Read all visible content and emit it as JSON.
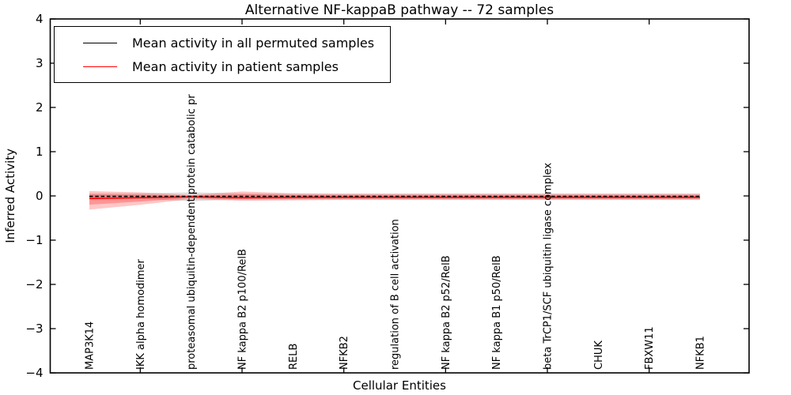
{
  "title": "Alternative NF-kappaB pathway -- 72 samples",
  "legend": {
    "items": [
      {
        "label": "Mean activity in all permuted samples",
        "color": "#000000"
      },
      {
        "label": "Mean activity in patient samples",
        "color": "#ff0000"
      }
    ],
    "position": "upper left"
  },
  "chart_data": {
    "type": "line",
    "title": "Alternative NF-kappaB pathway -- 72 samples",
    "xlabel": "Cellular Entities",
    "ylabel": "Inferred Activity",
    "ylim": [
      -4,
      4
    ],
    "yticks": [
      4,
      3,
      2,
      1,
      0,
      -1,
      -2,
      -3,
      -4
    ],
    "xtick_mark_indices": [
      1,
      3,
      5,
      7,
      9,
      11
    ],
    "grid": false,
    "legend_position": "upper left",
    "categories": [
      "MAP3K14",
      "IKK alpha homodimer",
      "proteasomal ubiquitin-dependent protein catabolic pr",
      "NF kappa B2 p100/RelB",
      "RELB",
      "NFKB2",
      "regulation of B cell activation",
      "NF kappa B2 p52/RelB",
      "NF kappa B1 p50/RelB",
      "beta TrCP1/SCF ubiquitin ligase complex",
      "CHUK",
      "FBXW11",
      "NFKB1"
    ],
    "series": [
      {
        "name": "Mean activity in all permuted samples",
        "color": "#000000",
        "line_style": "dashed",
        "band_color": "#000000",
        "band_alpha": 0.13,
        "values": [
          -0.01,
          -0.01,
          -0.01,
          -0.01,
          -0.01,
          -0.01,
          -0.01,
          -0.01,
          -0.01,
          -0.01,
          -0.01,
          -0.01,
          -0.01
        ],
        "band_hi": [
          0.06,
          0.06,
          0.08,
          0.06,
          0.05,
          0.05,
          0.05,
          0.05,
          0.05,
          0.05,
          0.05,
          0.05,
          0.05
        ],
        "band_lo": [
          -0.07,
          -0.07,
          -0.12,
          -0.08,
          -0.08,
          -0.08,
          -0.08,
          -0.08,
          -0.08,
          -0.08,
          -0.08,
          -0.08,
          -0.08
        ]
      },
      {
        "name": "Mean activity in patient samples",
        "color": "#ff0000",
        "line_style": "solid",
        "band_color": "#ff0000",
        "band_alpha": 0.22,
        "values": [
          -0.06,
          -0.04,
          -0.02,
          -0.04,
          -0.03,
          -0.03,
          -0.03,
          -0.03,
          -0.03,
          -0.03,
          -0.03,
          -0.03,
          -0.03
        ],
        "band_hi": [
          0.11,
          0.08,
          0.02,
          0.1,
          0.06,
          0.05,
          0.05,
          0.05,
          0.05,
          0.05,
          0.05,
          0.05,
          0.05
        ],
        "band_lo": [
          -0.31,
          -0.2,
          -0.07,
          -0.11,
          -0.1,
          -0.09,
          -0.09,
          -0.09,
          -0.09,
          -0.09,
          -0.09,
          -0.09,
          -0.09
        ]
      }
    ]
  }
}
